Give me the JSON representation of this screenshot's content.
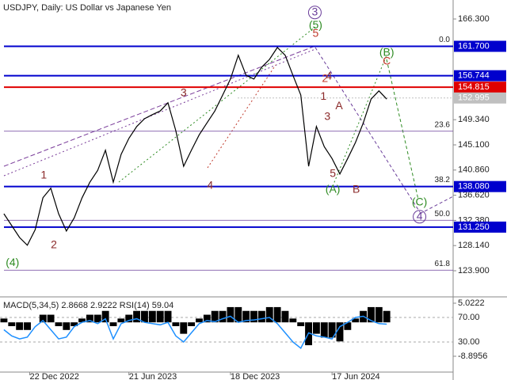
{
  "chart_data": [
    {
      "type": "line",
      "title": "USDJPY, Daily:  US Dollar vs Japanese Yen",
      "color": "#000000",
      "values": [
        133.5,
        131.5,
        129.5,
        128.2,
        130.8,
        136.2,
        137.8,
        133.5,
        130.6,
        132.8,
        136.2,
        138.8,
        140.8,
        144.2,
        138.8,
        143.5,
        146.2,
        148.2,
        149.5,
        150.2,
        150.8,
        152.2,
        147.5,
        141.5,
        144.2,
        146.8,
        148.8,
        150.8,
        153.5,
        156.2,
        160.2,
        156.8,
        156.2,
        158.2,
        159.5,
        161.5,
        160.2,
        156.8,
        153.5,
        141.5,
        148.2,
        144.8,
        142.8,
        140.2,
        142.8,
        145.5,
        148.8,
        152.8,
        154.2,
        152.8
      ],
      "xlim": [
        -0.5,
        57.5
      ],
      "ylim": [
        119.9,
        169.5
      ],
      "yticks": [
        {
          "value": 166.3,
          "label": "166.300"
        },
        {
          "value": 149.34,
          "label": "149.340"
        },
        {
          "value": 145.1,
          "label": "145.100"
        },
        {
          "value": 140.86,
          "label": "140.860"
        },
        {
          "value": 136.62,
          "label": "136.620"
        },
        {
          "value": 132.38,
          "label": "132.380"
        },
        {
          "value": 128.14,
          "label": "128.140"
        },
        {
          "value": 123.9,
          "label": "123.900"
        }
      ],
      "levels": [
        {
          "value": 161.7,
          "label": "161.700",
          "color": "#0000cd"
        },
        {
          "value": 156.744,
          "label": "156.744",
          "color": "#0000cd"
        },
        {
          "value": 154.815,
          "label": "154.815",
          "color": "#e00000"
        },
        {
          "value": 152.995,
          "label": "152.995",
          "color": "#c0c0c0"
        },
        {
          "value": 138.08,
          "label": "138.080",
          "color": "#0000cd"
        },
        {
          "value": 131.25,
          "label": "131.250",
          "color": "#0000cd"
        }
      ],
      "fib": [
        {
          "value": 161.7,
          "label": "0.0"
        },
        {
          "value": 147.4,
          "label": "23.6"
        },
        {
          "value": 138.1,
          "label": "38.2"
        },
        {
          "value": 132.4,
          "label": "50.0"
        },
        {
          "value": 124.0,
          "label": "61.8"
        }
      ],
      "annotations": [
        {
          "text": "(4)",
          "color": "#2e8b22",
          "x": 1.1,
          "y": 125.2
        },
        {
          "text": "1",
          "color": "#8b2a2a",
          "x": 5.1,
          "y": 139.9
        },
        {
          "text": "2",
          "color": "#8b2a2a",
          "x": 6.4,
          "y": 128.2
        },
        {
          "text": "3",
          "color": "#8b2a2a",
          "x": 23.0,
          "y": 153.8
        },
        {
          "text": "4",
          "color": "#8b2a2a",
          "x": 26.4,
          "y": 138.2
        },
        {
          "text": "5",
          "color": "#c0392b",
          "x": 39.9,
          "y": 163.8
        },
        {
          "text": "3",
          "color": "#6a3d9a",
          "x": 39.8,
          "y": 167.4,
          "circled": true
        },
        {
          "text": "(5)",
          "color": "#2e8b22",
          "x": 39.9,
          "y": 165.2
        },
        {
          "text": "2",
          "color": "#c0392b",
          "x": 41.1,
          "y": 156.2
        },
        {
          "text": "1",
          "color": "#8b2a2a",
          "x": 40.9,
          "y": 153.2
        },
        {
          "text": "A",
          "color": "#8b2a2a",
          "x": 42.9,
          "y": 151.6
        },
        {
          "text": "3",
          "color": "#8b2a2a",
          "x": 41.4,
          "y": 149.8
        },
        {
          "text": "4",
          "color": "#8b2a2a",
          "x": 41.6,
          "y": 156.6
        },
        {
          "text": "5",
          "color": "#8b2a2a",
          "x": 42.1,
          "y": 140.2
        },
        {
          "text": "(A)",
          "color": "#2e8b22",
          "x": 42.1,
          "y": 137.5
        },
        {
          "text": "B",
          "color": "#8b2a2a",
          "x": 45.1,
          "y": 137.5
        },
        {
          "text": "(B)",
          "color": "#2e8b22",
          "x": 49.0,
          "y": 160.6
        },
        {
          "text": "C",
          "color": "#c0392b",
          "x": 49.0,
          "y": 159.1
        },
        {
          "text": "(C)",
          "color": "#2e8b22",
          "x": 53.2,
          "y": 135.4
        },
        {
          "text": "4",
          "color": "#6a3d9a",
          "x": 53.2,
          "y": 133.0,
          "circled": true
        }
      ]
    },
    {
      "type": "macd",
      "title": "MACD(5,34,5) 2.8668 2.9222 RSI(14) 59.04",
      "xlim": [
        -0.5,
        57.5
      ],
      "xticks": [
        {
          "value": 3.3,
          "label": "22 Dec 2022"
        },
        {
          "value": 16,
          "label": "21 Jun 2023"
        },
        {
          "value": 29,
          "label": "18 Dec 2023"
        },
        {
          "value": 42,
          "label": "17 Jun 2024"
        }
      ],
      "ylim": [
        -13.05,
        6.06
      ],
      "yticks": [
        {
          "value": 5.0222,
          "label": "5.0222"
        },
        {
          "value": -8.8956,
          "label": "-8.8956"
        }
      ],
      "y2lim": [
        -19,
        99.7
      ],
      "y2ticks": [
        {
          "value": 70,
          "label": "70.00"
        },
        {
          "value": 30,
          "label": "30.00"
        }
      ],
      "series": [
        {
          "color": "#000000",
          "values": [
            1,
            -1,
            -2,
            -2,
            0,
            2,
            2,
            -1,
            -2,
            -1,
            1,
            2,
            2,
            3,
            -1,
            1,
            2,
            3,
            3,
            3,
            3,
            3,
            -1,
            -3,
            -1,
            1,
            2,
            3,
            3,
            4,
            4,
            3,
            3,
            3,
            4,
            4,
            3,
            1,
            -1,
            -6,
            -3,
            -4,
            -4,
            -5,
            -2,
            1,
            3,
            4,
            4,
            3
          ]
        },
        {
          "color": "#1e90ff",
          "axis": "y2",
          "values": [
            50,
            40,
            35,
            38,
            55,
            65,
            50,
            35,
            38,
            55,
            62,
            65,
            60,
            68,
            35,
            60,
            65,
            68,
            62,
            60,
            58,
            62,
            40,
            30,
            45,
            60,
            65,
            63,
            68,
            72,
            62,
            65,
            66,
            68,
            70,
            60,
            45,
            30,
            20,
            45,
            40,
            38,
            35,
            55,
            62,
            70,
            72,
            65,
            60,
            59
          ]
        }
      ]
    }
  ]
}
